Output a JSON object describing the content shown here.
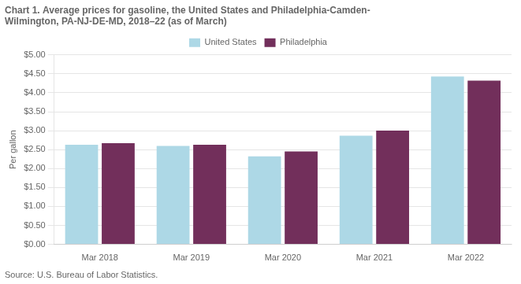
{
  "chart_data": {
    "type": "bar",
    "title": [
      "Chart 1. Average prices for gasoline, the United States and Philadelphia-Camden-",
      "Wilmington, PA-NJ-DE-MD, 2018–22 (as of March)"
    ],
    "ylabel": "Per gallon",
    "source": "Source: U.S. Bureau of Labor Statistics.",
    "categories": [
      "Mar 2018",
      "Mar 2019",
      "Mar 2020",
      "Mar 2021",
      "Mar 2022"
    ],
    "series": [
      {
        "name": "United States",
        "color": "#ADD8E6",
        "values": [
          2.63,
          2.6,
          2.32,
          2.87,
          4.43
        ]
      },
      {
        "name": "Philadelphia",
        "color": "#722F5B",
        "values": [
          2.67,
          2.63,
          2.45,
          3.0,
          4.32
        ]
      }
    ],
    "ylim": [
      0,
      5.0
    ],
    "yticks": [
      {
        "value": 0.0,
        "label": "$0.00"
      },
      {
        "value": 0.5,
        "label": "$0.50"
      },
      {
        "value": 1.0,
        "label": "$1.00"
      },
      {
        "value": 1.5,
        "label": "$1.50"
      },
      {
        "value": 2.0,
        "label": "$2.00"
      },
      {
        "value": 2.5,
        "label": "$2.50"
      },
      {
        "value": 3.0,
        "label": "$3.00"
      },
      {
        "value": 3.5,
        "label": "$3.50"
      },
      {
        "value": 4.0,
        "label": "$4.00"
      },
      {
        "value": 4.5,
        "label": "$4.50"
      },
      {
        "value": 5.0,
        "label": "$5.00"
      }
    ],
    "grid": true,
    "legend": "top"
  }
}
